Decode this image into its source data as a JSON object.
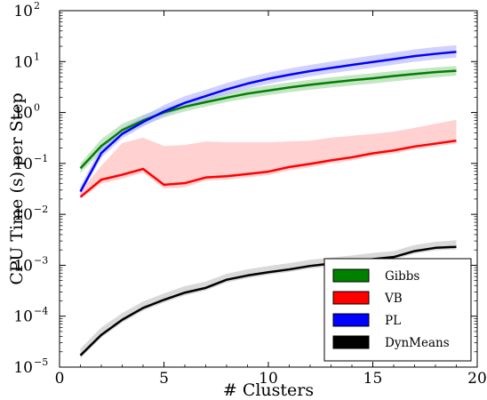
{
  "chart_data": {
    "type": "line",
    "xlabel": "# Clusters",
    "ylabel": "CPU Time (s) per Step",
    "xlim": [
      0,
      20
    ],
    "ylim": [
      1e-05,
      100
    ],
    "yscale": "log",
    "x_ticks": [
      0,
      5,
      10,
      15,
      20
    ],
    "y_ticks": [
      {
        "value": 1e-05,
        "base": "10",
        "exp": "−5"
      },
      {
        "value": 0.0001,
        "base": "10",
        "exp": "−4"
      },
      {
        "value": 0.001,
        "base": "10",
        "exp": "−3"
      },
      {
        "value": 0.01,
        "base": "10",
        "exp": "−2"
      },
      {
        "value": 0.1,
        "base": "10",
        "exp": "−1"
      },
      {
        "value": 1,
        "base": "10",
        "exp": "0"
      },
      {
        "value": 10,
        "base": "10",
        "exp": "1"
      },
      {
        "value": 100,
        "base": "10",
        "exp": "2"
      }
    ],
    "grid": false,
    "legend_position": "bottom-right",
    "x": [
      1,
      2,
      3,
      4,
      5,
      6,
      7,
      8,
      9,
      10,
      11,
      12,
      13,
      14,
      15,
      16,
      17,
      18,
      19
    ],
    "series": [
      {
        "name": "Gibbs",
        "color": "#008000",
        "band_color": "#9fd49f",
        "values": [
          0.08,
          0.22,
          0.45,
          0.7,
          1.0,
          1.3,
          1.6,
          1.95,
          2.35,
          2.7,
          3.1,
          3.5,
          3.9,
          4.3,
          4.7,
          5.2,
          5.7,
          6.2,
          6.6
        ],
        "upper": [
          0.1,
          0.3,
          0.6,
          0.9,
          1.25,
          1.6,
          2.0,
          2.45,
          2.95,
          3.4,
          3.9,
          4.4,
          4.9,
          5.4,
          5.9,
          6.5,
          7.1,
          7.7,
          8.2
        ],
        "lower": [
          0.065,
          0.17,
          0.35,
          0.55,
          0.8,
          1.05,
          1.3,
          1.6,
          1.9,
          2.2,
          2.5,
          2.8,
          3.1,
          3.4,
          3.7,
          4.1,
          4.5,
          4.9,
          5.3
        ]
      },
      {
        "name": "VB",
        "color": "#ff0000",
        "band_color": "#ffb3b3",
        "values": [
          0.022,
          0.048,
          0.06,
          0.078,
          0.038,
          0.041,
          0.053,
          0.056,
          0.062,
          0.069,
          0.085,
          0.098,
          0.115,
          0.132,
          0.158,
          0.18,
          0.215,
          0.245,
          0.28
        ],
        "upper": [
          0.028,
          0.09,
          0.25,
          0.32,
          0.22,
          0.23,
          0.27,
          0.26,
          0.26,
          0.26,
          0.27,
          0.28,
          0.32,
          0.35,
          0.38,
          0.42,
          0.5,
          0.6,
          0.72
        ],
        "lower": [
          0.02,
          0.04,
          0.05,
          0.066,
          0.032,
          0.034,
          0.046,
          0.048,
          0.053,
          0.059,
          0.073,
          0.084,
          0.1,
          0.115,
          0.138,
          0.157,
          0.188,
          0.215,
          0.245
        ]
      },
      {
        "name": "PL",
        "color": "#0000ff",
        "band_color": "#b3b3ff",
        "values": [
          0.028,
          0.16,
          0.38,
          0.65,
          1.05,
          1.55,
          2.1,
          2.85,
          3.7,
          4.6,
          5.5,
          6.5,
          7.5,
          8.6,
          9.8,
          11.2,
          12.8,
          14.2,
          15.5
        ],
        "upper": [
          0.035,
          0.22,
          0.5,
          0.85,
          1.4,
          2.1,
          2.8,
          3.8,
          4.9,
          6.1,
          7.3,
          8.6,
          10.0,
          11.5,
          13.2,
          15.1,
          17.3,
          19.3,
          21.0
        ],
        "lower": [
          0.024,
          0.13,
          0.31,
          0.53,
          0.85,
          1.25,
          1.7,
          2.3,
          2.95,
          3.65,
          4.35,
          5.1,
          5.9,
          6.7,
          7.6,
          8.7,
          9.9,
          11.0,
          12.0
        ]
      },
      {
        "name": "DynMeans",
        "color": "#000000",
        "band_color": "#bfbfbf",
        "values": [
          1.7e-05,
          4.3e-05,
          8.5e-05,
          0.000145,
          0.00021,
          0.00029,
          0.00036,
          0.00052,
          0.00063,
          0.00073,
          0.00083,
          0.00097,
          0.00108,
          0.00118,
          0.00132,
          0.00145,
          0.0019,
          0.0022,
          0.0023
        ],
        "upper": [
          2.3e-05,
          6e-05,
          0.000115,
          0.000195,
          0.00028,
          0.00039,
          0.00048,
          0.00068,
          0.00083,
          0.00097,
          0.0011,
          0.00128,
          0.00142,
          0.00156,
          0.00175,
          0.0019,
          0.0025,
          0.0029,
          0.0031
        ],
        "lower": [
          1.5e-05,
          3.8e-05,
          7.5e-05,
          0.000128,
          0.000185,
          0.000255,
          0.00032,
          0.00046,
          0.00056,
          0.00065,
          0.00074,
          0.00086,
          0.00096,
          0.00105,
          0.00118,
          0.0013,
          0.0017,
          0.00195,
          0.00205
        ]
      }
    ]
  }
}
